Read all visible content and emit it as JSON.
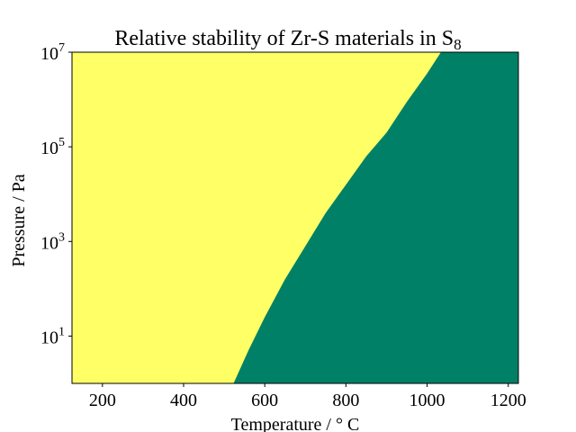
{
  "chart_data": {
    "type": "area",
    "title": "Relative stability of Zr-S materials in S",
    "title_subscript": "8",
    "xlabel": "Temperature / ° C",
    "ylabel": "Pressure / Pa",
    "xlim": [
      125,
      1225
    ],
    "ylim_log10": [
      0,
      7
    ],
    "y_scale": "log",
    "grid": false,
    "x_ticks": [
      {
        "value": 200,
        "label": "200"
      },
      {
        "value": 400,
        "label": "400"
      },
      {
        "value": 600,
        "label": "600"
      },
      {
        "value": 800,
        "label": "800"
      },
      {
        "value": 1000,
        "label": "1000"
      },
      {
        "value": 1200,
        "label": "1200"
      }
    ],
    "y_ticks": [
      {
        "exp": 1,
        "base": "10",
        "sup": "1"
      },
      {
        "exp": 3,
        "base": "10",
        "sup": "3"
      },
      {
        "exp": 5,
        "base": "10",
        "sup": "5"
      },
      {
        "exp": 7,
        "base": "10",
        "sup": "7"
      }
    ],
    "regions": [
      {
        "color": "#ffff66"
      },
      {
        "color": "#008066"
      }
    ],
    "boundary": {
      "temperature": [
        523,
        560,
        600,
        650,
        700,
        750,
        800,
        850,
        900,
        950,
        1000,
        1034
      ],
      "log10_pressure": [
        0,
        0.7,
        1.4,
        2.2,
        2.9,
        3.6,
        4.2,
        4.8,
        5.3,
        5.95,
        6.55,
        7.0
      ]
    }
  }
}
